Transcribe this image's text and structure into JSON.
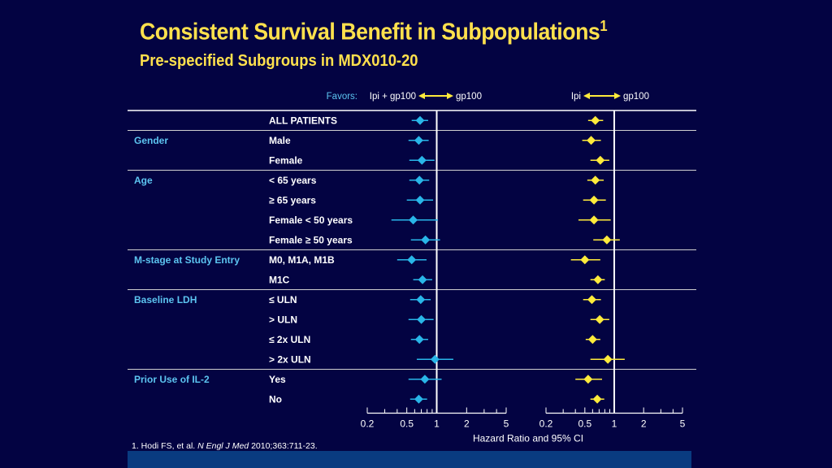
{
  "slide": {
    "title": "Consistent Survival Benefit in Subpopulations",
    "title_superscript": "1",
    "subtitle": "Pre-specified Subgroups in MDX010-20",
    "footnote_prefix": "1.  Hodi FS, et al. ",
    "footnote_journal": "N Engl J Med",
    "footnote_suffix": " 2010;363:711-23."
  },
  "chart_data": {
    "type": "forest",
    "favors_label": "Favors:",
    "xlabel": "Hazard Ratio and 95% CI",
    "scale": "log",
    "xlim": [
      0.2,
      5
    ],
    "tick_labels": [
      "0.2",
      "0.5",
      "1",
      "2",
      "5"
    ],
    "panels": [
      {
        "favors_left": "Ipi + gp100",
        "favors_right": "gp100",
        "color": "#29b6e8",
        "points": [
          {
            "hr": 0.68,
            "lo": 0.56,
            "hi": 0.82
          },
          {
            "hr": 0.66,
            "lo": 0.52,
            "hi": 0.83
          },
          {
            "hr": 0.71,
            "lo": 0.53,
            "hi": 0.95
          },
          {
            "hr": 0.67,
            "lo": 0.53,
            "hi": 0.84
          },
          {
            "hr": 0.68,
            "lo": 0.5,
            "hi": 0.92
          },
          {
            "hr": 0.58,
            "lo": 0.35,
            "hi": 1.03
          },
          {
            "hr": 0.77,
            "lo": 0.55,
            "hi": 1.08
          },
          {
            "hr": 0.56,
            "lo": 0.4,
            "hi": 0.79
          },
          {
            "hr": 0.72,
            "lo": 0.58,
            "hi": 0.9
          },
          {
            "hr": 0.69,
            "lo": 0.54,
            "hi": 0.87
          },
          {
            "hr": 0.7,
            "lo": 0.52,
            "hi": 0.93
          },
          {
            "hr": 0.67,
            "lo": 0.55,
            "hi": 0.82
          },
          {
            "hr": 0.96,
            "lo": 0.63,
            "hi": 1.47
          },
          {
            "hr": 0.76,
            "lo": 0.52,
            "hi": 1.12
          },
          {
            "hr": 0.66,
            "lo": 0.54,
            "hi": 0.8
          }
        ]
      },
      {
        "favors_left": "Ipi",
        "favors_right": "gp100",
        "color": "#ffeb3b",
        "points": [
          {
            "hr": 0.64,
            "lo": 0.54,
            "hi": 0.77
          },
          {
            "hr": 0.58,
            "lo": 0.47,
            "hi": 0.73
          },
          {
            "hr": 0.72,
            "lo": 0.57,
            "hi": 0.89
          },
          {
            "hr": 0.64,
            "lo": 0.53,
            "hi": 0.78
          },
          {
            "hr": 0.62,
            "lo": 0.48,
            "hi": 0.82
          },
          {
            "hr": 0.62,
            "lo": 0.43,
            "hi": 0.92
          },
          {
            "hr": 0.84,
            "lo": 0.61,
            "hi": 1.14
          },
          {
            "hr": 0.5,
            "lo": 0.36,
            "hi": 0.72
          },
          {
            "hr": 0.68,
            "lo": 0.57,
            "hi": 0.8
          },
          {
            "hr": 0.59,
            "lo": 0.48,
            "hi": 0.73
          },
          {
            "hr": 0.71,
            "lo": 0.57,
            "hi": 0.89
          },
          {
            "hr": 0.6,
            "lo": 0.51,
            "hi": 0.72
          },
          {
            "hr": 0.86,
            "lo": 0.57,
            "hi": 1.28
          },
          {
            "hr": 0.54,
            "lo": 0.4,
            "hi": 0.75
          },
          {
            "hr": 0.67,
            "lo": 0.57,
            "hi": 0.79
          }
        ]
      }
    ],
    "rows": [
      {
        "group": "",
        "label": "ALL PATIENTS"
      },
      {
        "group": "Gender",
        "label": "Male"
      },
      {
        "group": "",
        "label": "Female"
      },
      {
        "group": "Age",
        "label": "< 65 years"
      },
      {
        "group": "",
        "label": "≥ 65 years"
      },
      {
        "group": "",
        "label": "Female < 50 years"
      },
      {
        "group": "",
        "label": "Female ≥ 50 years"
      },
      {
        "group": "M-stage at Study Entry",
        "label": "M0, M1A, M1B"
      },
      {
        "group": "",
        "label": "M1C"
      },
      {
        "group": "Baseline LDH",
        "label": "≤ ULN"
      },
      {
        "group": "",
        "label": "> ULN"
      },
      {
        "group": "",
        "label": "≤ 2x ULN"
      },
      {
        "group": "",
        "label": "> 2x ULN"
      },
      {
        "group": "Prior Use of IL-2",
        "label": "Yes"
      },
      {
        "group": "",
        "label": "No"
      }
    ],
    "separators_after_rows": [
      0,
      2,
      6,
      8,
      12
    ]
  }
}
